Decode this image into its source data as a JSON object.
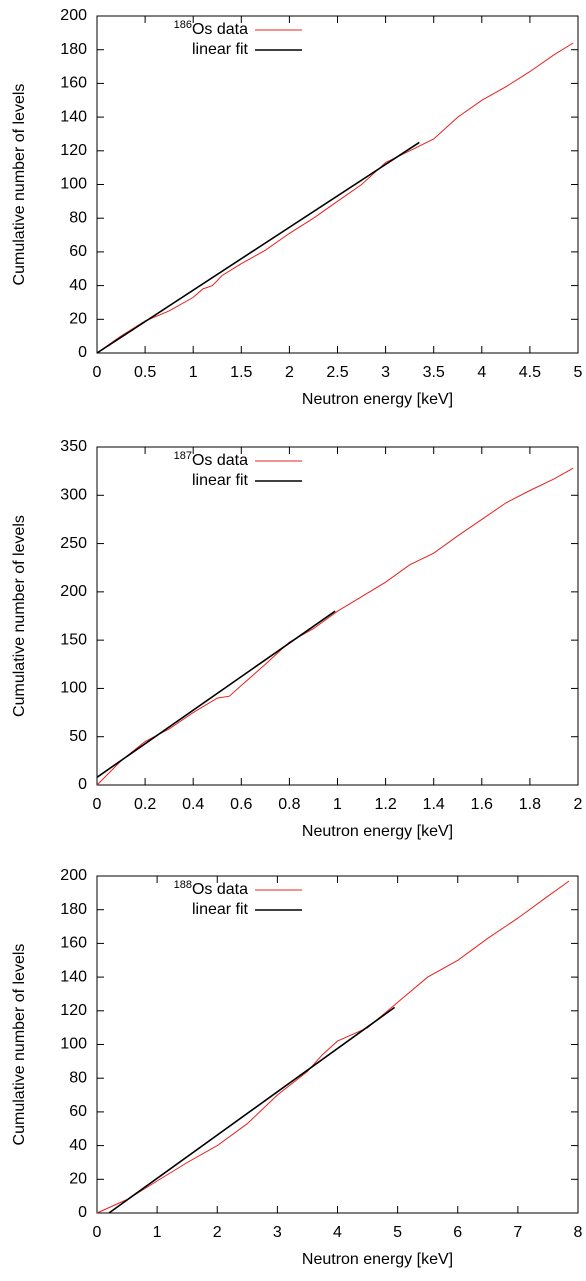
{
  "chart_data": [
    {
      "type": "line",
      "xlabel": "Neutron energy [keV]",
      "ylabel": "Cumulative number of levels",
      "xlim": [
        0,
        5
      ],
      "ylim": [
        0,
        200
      ],
      "xticks": [
        0,
        0.5,
        1,
        1.5,
        2,
        2.5,
        3,
        3.5,
        4,
        4.5,
        5
      ],
      "yticks": [
        0,
        20,
        40,
        60,
        80,
        100,
        120,
        140,
        160,
        180,
        200
      ],
      "series": [
        {
          "isotope": "186",
          "name": "Os data",
          "color": "#e8211f",
          "x": [
            0,
            0.25,
            0.5,
            0.75,
            1,
            1.1,
            1.2,
            1.3,
            1.5,
            1.75,
            2,
            2.25,
            2.5,
            2.75,
            3,
            3.25,
            3.5,
            3.75,
            4,
            4.25,
            4.5,
            4.75,
            4.95
          ],
          "values": [
            0,
            10,
            19,
            25,
            33,
            38,
            40,
            46,
            53,
            61,
            71,
            80,
            90,
            100,
            113,
            120,
            127,
            140,
            150,
            158,
            167,
            177,
            184
          ]
        },
        {
          "name": "linear fit",
          "color": "#000000",
          "x": [
            0,
            3.35
          ],
          "values": [
            0,
            125
          ]
        }
      ]
    },
    {
      "type": "line",
      "xlabel": "Neutron energy [keV]",
      "ylabel": "Cumulative number of levels",
      "xlim": [
        0,
        2
      ],
      "ylim": [
        0,
        350
      ],
      "xticks": [
        0,
        0.2,
        0.4,
        0.6,
        0.8,
        1,
        1.2,
        1.4,
        1.6,
        1.8,
        2
      ],
      "yticks": [
        0,
        50,
        100,
        150,
        200,
        250,
        300,
        350
      ],
      "series": [
        {
          "isotope": "187",
          "name": "Os data",
          "color": "#e8211f",
          "x": [
            0,
            0.1,
            0.2,
            0.3,
            0.4,
            0.5,
            0.55,
            0.6,
            0.7,
            0.8,
            0.9,
            1,
            1.1,
            1.2,
            1.3,
            1.4,
            1.5,
            1.6,
            1.7,
            1.8,
            1.9,
            1.98
          ],
          "values": [
            0,
            25,
            45,
            58,
            75,
            90,
            92,
            103,
            125,
            148,
            162,
            180,
            195,
            210,
            228,
            240,
            258,
            275,
            292,
            305,
            317,
            328
          ]
        },
        {
          "name": "linear fit",
          "color": "#000000",
          "x": [
            0,
            0.99
          ],
          "values": [
            8,
            180
          ]
        }
      ]
    },
    {
      "type": "line",
      "xlabel": "Neutron energy [keV]",
      "ylabel": "Cumulative number of levels",
      "xlim": [
        0,
        8
      ],
      "ylim": [
        0,
        200
      ],
      "xticks": [
        0,
        1,
        2,
        3,
        4,
        5,
        6,
        7,
        8
      ],
      "yticks": [
        0,
        20,
        40,
        60,
        80,
        100,
        120,
        140,
        160,
        180,
        200
      ],
      "series": [
        {
          "isotope": "188",
          "name": "Os data",
          "color": "#e8211f",
          "x": [
            0,
            0.5,
            1,
            1.5,
            2,
            2.5,
            3,
            3.5,
            3.75,
            4,
            4.5,
            5,
            5.5,
            6,
            6.5,
            7,
            7.5,
            7.85
          ],
          "values": [
            0,
            8,
            19,
            30,
            40,
            53,
            70,
            84,
            94,
            102,
            110,
            125,
            140,
            150,
            163,
            175,
            188,
            197
          ]
        },
        {
          "name": "linear fit",
          "color": "#000000",
          "x": [
            0.2,
            4.95
          ],
          "values": [
            0,
            122
          ]
        }
      ]
    }
  ]
}
